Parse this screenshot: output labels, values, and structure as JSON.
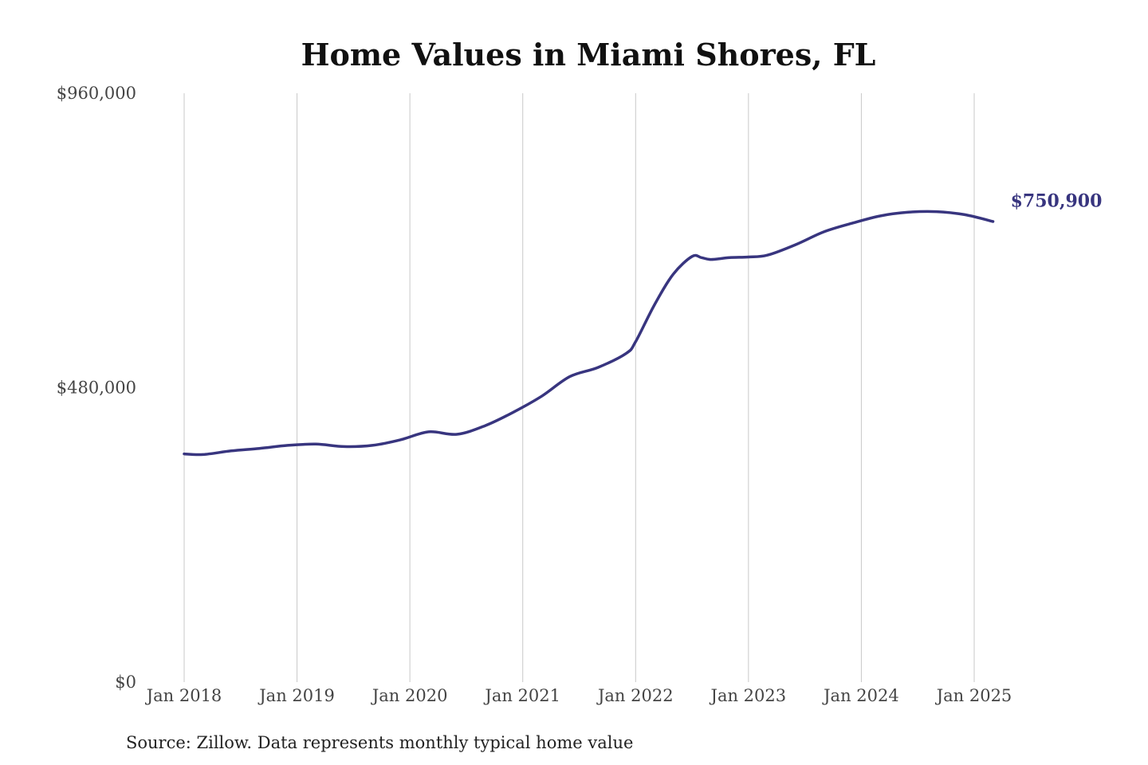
{
  "colors": {
    "line": "#38357f",
    "grid": "#c8c8c8",
    "title": "#111111",
    "tick": "#444444"
  },
  "source": "Source: Zillow. Data represents monthly typical home value",
  "chart_data": {
    "type": "line",
    "title": "Home Values in Miami Shores, FL",
    "xlabel": "",
    "ylabel": "",
    "ylim": [
      0,
      960000
    ],
    "xlim": [
      "2018-01",
      "2025-03"
    ],
    "grid": {
      "x": true,
      "y": false
    },
    "y_ticks": [
      {
        "value": 0,
        "label": "$0"
      },
      {
        "value": 480000,
        "label": "$480,000"
      },
      {
        "value": 960000,
        "label": "$960,000"
      }
    ],
    "x_ticks": [
      {
        "value": "2018-01",
        "label": "Jan 2018"
      },
      {
        "value": "2019-01",
        "label": "Jan 2019"
      },
      {
        "value": "2020-01",
        "label": "Jan 2020"
      },
      {
        "value": "2021-01",
        "label": "Jan 2021"
      },
      {
        "value": "2022-01",
        "label": "Jan 2022"
      },
      {
        "value": "2023-01",
        "label": "Jan 2023"
      },
      {
        "value": "2024-01",
        "label": "Jan 2024"
      },
      {
        "value": "2025-01",
        "label": "Jan 2025"
      }
    ],
    "end_label": "$750,900",
    "series": [
      {
        "x": [
          "2018-01",
          "2018-03",
          "2018-06",
          "2018-09",
          "2018-12",
          "2019-03",
          "2019-06",
          "2019-09",
          "2019-12",
          "2020-03",
          "2020-06",
          "2020-09",
          "2020-12",
          "2021-03",
          "2021-06",
          "2021-09",
          "2021-12",
          "2022-01",
          "2022-03",
          "2022-05",
          "2022-07",
          "2022-08",
          "2022-09",
          "2022-11",
          "2023-01",
          "2023-03",
          "2023-06",
          "2023-09",
          "2023-12",
          "2024-03",
          "2024-06",
          "2024-09",
          "2024-12",
          "2025-03"
        ],
        "values": [
          372000,
          371000,
          377000,
          381000,
          386000,
          388000,
          384000,
          386000,
          395000,
          408000,
          404000,
          418000,
          440000,
          466000,
          498000,
          513000,
          536000,
          555000,
          615000,
          665000,
          694000,
          692000,
          689000,
          692000,
          693000,
          696000,
          713000,
          734000,
          748000,
          760000,
          766000,
          767000,
          762000,
          750900
        ]
      }
    ]
  }
}
